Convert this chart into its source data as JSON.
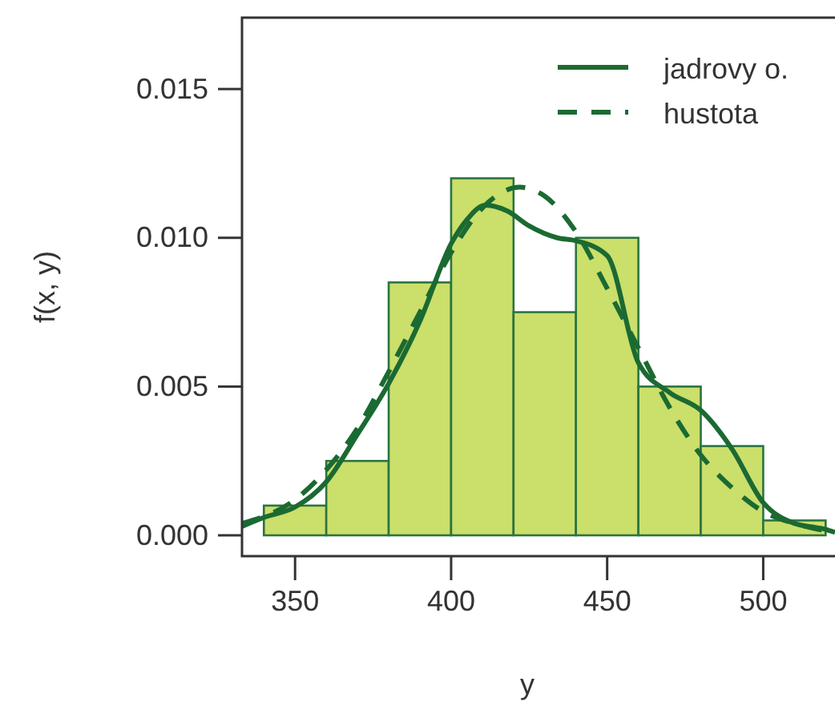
{
  "chart_data": {
    "type": "histogram",
    "xlabel": "y",
    "ylabel": "f(x, y)",
    "bins": [
      340,
      360,
      380,
      400,
      420,
      440,
      460,
      480,
      500,
      520
    ],
    "values": [
      0.001,
      0.0025,
      0.0085,
      0.012,
      0.0075,
      0.01,
      0.005,
      0.003,
      0.0005
    ],
    "color": "#cbdf6b",
    "series": [
      {
        "name": "jadrovy o.",
        "type": "line",
        "line_style": "solid",
        "color": "#1b6a32",
        "x": [
          333,
          340,
          350,
          360,
          370,
          380,
          390,
          400,
          405,
          411,
          418,
          425,
          434,
          440,
          450,
          460,
          470,
          480,
          490,
          500,
          510,
          520,
          523
        ],
        "values": [
          0.0003,
          0.0006,
          0.00095,
          0.0018,
          0.0034,
          0.0051,
          0.0072,
          0.0098,
          0.0106,
          0.0111,
          0.0109,
          0.0104,
          0.01,
          0.0099,
          0.0094,
          0.0058,
          0.0048,
          0.0042,
          0.0029,
          0.0011,
          0.0004,
          0.0002,
          0.0001
        ]
      },
      {
        "name": "hustota",
        "type": "line",
        "line_style": "dashed",
        "color": "#1b6a32",
        "x": [
          333,
          350,
          360,
          370,
          380,
          390,
          400,
          410,
          422,
          430,
          440,
          450,
          460,
          470,
          480,
          490,
          500,
          510,
          523
        ],
        "values": [
          0.0004,
          0.0012,
          0.0022,
          0.0036,
          0.0055,
          0.0075,
          0.0095,
          0.011,
          0.0117,
          0.0114,
          0.0102,
          0.0083,
          0.0063,
          0.0043,
          0.0027,
          0.0016,
          0.0008,
          0.0004,
          0.0001
        ]
      }
    ],
    "xlim": [
      333,
      523
    ],
    "ylim": [
      -0.0007,
      0.0174
    ],
    "xticks": [
      350,
      400,
      450,
      500
    ],
    "yticks": [
      {
        "value": 0,
        "label": "0.000"
      },
      {
        "value": 0.005,
        "label": "0.005"
      },
      {
        "value": 0.01,
        "label": "0.010"
      },
      {
        "value": 0.015,
        "label": "0.015"
      }
    ],
    "grid": false,
    "legend": "top right"
  }
}
